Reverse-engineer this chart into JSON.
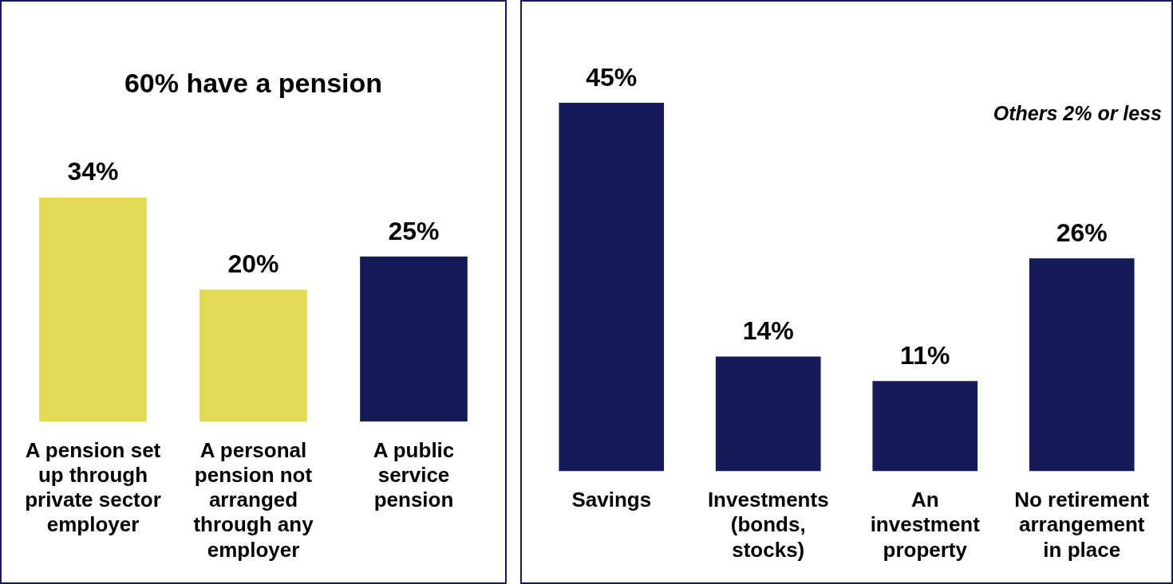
{
  "chart_data": [
    {
      "type": "bar",
      "title": "60% have a pension",
      "categories": [
        "A pension set up through private sector employer",
        "A personal pension not arranged through any employer",
        "A public service pension"
      ],
      "values": [
        34,
        20,
        25
      ],
      "colors": [
        "#e2da52",
        "#e2da52",
        "#131c59"
      ],
      "value_labels": [
        "34%",
        "20%",
        "25%"
      ],
      "grid": false,
      "legend": false,
      "tick_labels": "x"
    },
    {
      "type": "bar",
      "categories": [
        "Savings",
        "Investments (bonds, stocks)",
        "An investment property",
        "No retirement arrangement in place"
      ],
      "values": [
        45,
        14,
        11,
        26
      ],
      "colors": [
        "#131c59",
        "#131c59",
        "#131c59",
        "#131c59"
      ],
      "value_labels": [
        "45%",
        "14%",
        "11%",
        "26%"
      ],
      "annotations": [
        "Others 2% or less"
      ],
      "grid": false,
      "legend": false,
      "tick_labels": "x"
    }
  ]
}
